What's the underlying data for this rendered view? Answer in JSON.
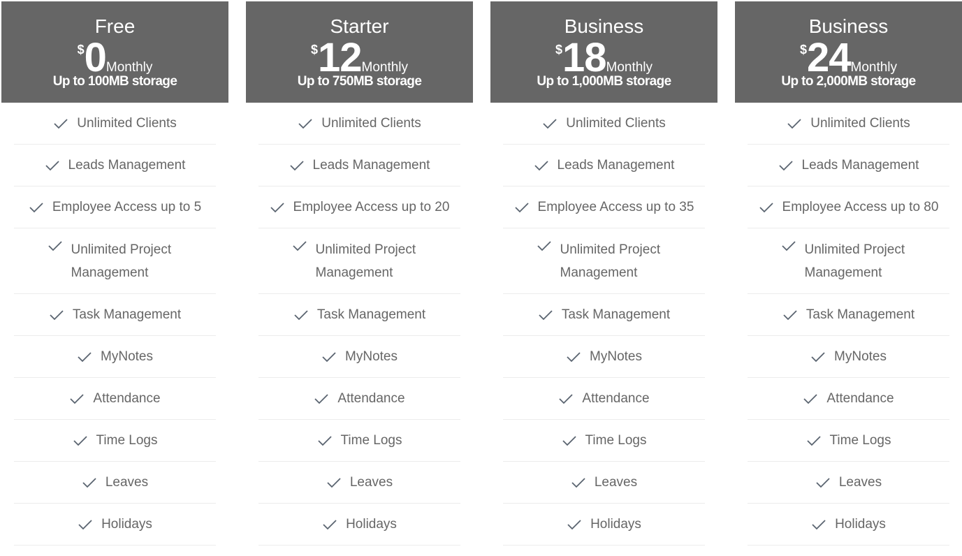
{
  "colors": {
    "header_bg": "#666666",
    "text": "#666666",
    "check": "#5a6470"
  },
  "plans": [
    {
      "name": "Free",
      "currency": "$",
      "amount": "0",
      "period": "Monthly",
      "storage": "Up to 100MB storage",
      "features": [
        "Unlimited Clients",
        "Leads Management",
        "Employee Access up to 5",
        "Unlimited Project Management",
        "Task Management",
        "MyNotes",
        "Attendance",
        "Time Logs",
        "Leaves",
        "Holidays"
      ]
    },
    {
      "name": "Starter",
      "currency": "$",
      "amount": "12",
      "period": "Monthly",
      "storage": "Up to 750MB storage",
      "features": [
        "Unlimited Clients",
        "Leads Management",
        "Employee Access up to 20",
        "Unlimited Project Management",
        "Task Management",
        "MyNotes",
        "Attendance",
        "Time Logs",
        "Leaves",
        "Holidays"
      ]
    },
    {
      "name": "Business",
      "currency": "$",
      "amount": "18",
      "period": "Monthly",
      "storage": "Up to 1,000MB storage",
      "features": [
        "Unlimited Clients",
        "Leads Management",
        "Employee Access up to 35",
        "Unlimited Project Management",
        "Task Management",
        "MyNotes",
        "Attendance",
        "Time Logs",
        "Leaves",
        "Holidays"
      ]
    },
    {
      "name": "Business",
      "currency": "$",
      "amount": "24",
      "period": "Monthly",
      "storage": "Up to 2,000MB storage",
      "features": [
        "Unlimited Clients",
        "Leads Management",
        "Employee Access up to 80",
        "Unlimited Project Management",
        "Task Management",
        "MyNotes",
        "Attendance",
        "Time Logs",
        "Leaves",
        "Holidays"
      ]
    }
  ]
}
